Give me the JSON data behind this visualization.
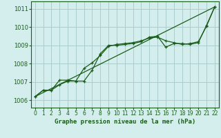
{
  "title": "Graphe pression niveau de la mer (hPa)",
  "bg_color": "#d4eeee",
  "grid_color": "#aacccc",
  "line_color": "#1a5c1a",
  "xlim": [
    -0.5,
    22.5
  ],
  "ylim": [
    1005.6,
    1011.4
  ],
  "xticks": [
    0,
    1,
    2,
    3,
    4,
    5,
    6,
    7,
    8,
    9,
    10,
    11,
    12,
    13,
    14,
    15,
    16,
    17,
    18,
    19,
    20,
    21,
    22
  ],
  "yticks": [
    1006,
    1007,
    1008,
    1009,
    1010,
    1011
  ],
  "series": [
    {
      "x": [
        0,
        1,
        2,
        3,
        4,
        5,
        6,
        7,
        8,
        9,
        10,
        11,
        12,
        13,
        14,
        15,
        16,
        17,
        18,
        19,
        20,
        21,
        22
      ],
      "y": [
        1006.2,
        1006.55,
        1006.55,
        1007.1,
        1007.1,
        1007.05,
        1007.05,
        1007.65,
        1008.55,
        1009.0,
        1009.0,
        1009.05,
        1009.1,
        1009.2,
        1009.45,
        1009.5,
        1008.9,
        1009.1,
        1009.1,
        1009.05,
        1009.15,
        1010.1,
        1011.1
      ],
      "marker": true
    },
    {
      "x": [
        0,
        1,
        2,
        3,
        4,
        5,
        6,
        7,
        8,
        9,
        10,
        11,
        12,
        13,
        14,
        15,
        16,
        17,
        18,
        19,
        20,
        21,
        22
      ],
      "y": [
        1006.2,
        1006.55,
        1006.55,
        1006.85,
        1007.05,
        1007.05,
        1007.75,
        1008.05,
        1008.45,
        1008.95,
        1009.05,
        1009.1,
        1009.15,
        1009.25,
        1009.4,
        1009.45,
        1009.25,
        1009.15,
        1009.05,
        1009.1,
        1009.2,
        1010.05,
        1011.1
      ],
      "marker": true
    },
    {
      "x": [
        0,
        22
      ],
      "y": [
        1006.2,
        1011.1
      ],
      "marker": false
    }
  ]
}
